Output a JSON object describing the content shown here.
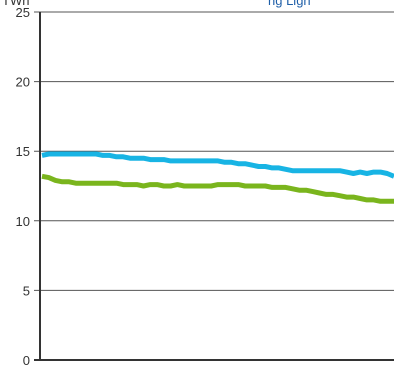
{
  "chart_data": {
    "type": "line",
    "ylabel": "TWh",
    "ylim": [
      0,
      25
    ],
    "yticks": [
      0,
      5,
      10,
      15,
      20,
      25
    ],
    "grid": true,
    "legend_text": "ng  Lign",
    "legend_color": "#1f5fa8",
    "x": [
      1,
      2,
      3,
      4,
      5,
      6,
      7,
      8,
      9,
      10,
      11,
      12,
      13,
      14,
      15,
      16,
      17,
      18,
      19,
      20,
      21,
      22,
      23,
      24,
      25,
      26,
      27,
      28,
      29,
      30,
      31,
      32,
      33,
      34,
      35,
      36,
      37,
      38,
      39,
      40,
      41,
      42,
      43,
      44,
      45,
      46,
      47,
      48,
      49,
      50,
      51,
      52,
      53
    ],
    "series": [
      {
        "color": "#18b4e4",
        "values": [
          14.7,
          14.8,
          14.8,
          14.8,
          14.8,
          14.8,
          14.8,
          14.8,
          14.8,
          14.7,
          14.7,
          14.6,
          14.6,
          14.5,
          14.5,
          14.5,
          14.4,
          14.4,
          14.4,
          14.3,
          14.3,
          14.3,
          14.3,
          14.3,
          14.3,
          14.3,
          14.3,
          14.2,
          14.2,
          14.1,
          14.1,
          14.0,
          13.9,
          13.9,
          13.8,
          13.8,
          13.7,
          13.6,
          13.6,
          13.6,
          13.6,
          13.6,
          13.6,
          13.6,
          13.6,
          13.5,
          13.4,
          13.5,
          13.4,
          13.5,
          13.5,
          13.4,
          13.2
        ]
      },
      {
        "color": "#7ab51d",
        "values": [
          13.2,
          13.1,
          12.9,
          12.8,
          12.8,
          12.7,
          12.7,
          12.7,
          12.7,
          12.7,
          12.7,
          12.7,
          12.6,
          12.6,
          12.6,
          12.5,
          12.6,
          12.6,
          12.5,
          12.5,
          12.6,
          12.5,
          12.5,
          12.5,
          12.5,
          12.5,
          12.6,
          12.6,
          12.6,
          12.6,
          12.5,
          12.5,
          12.5,
          12.5,
          12.4,
          12.4,
          12.4,
          12.3,
          12.2,
          12.2,
          12.1,
          12.0,
          11.9,
          11.9,
          11.8,
          11.7,
          11.7,
          11.6,
          11.5,
          11.5,
          11.4,
          11.4,
          11.4
        ]
      }
    ]
  }
}
